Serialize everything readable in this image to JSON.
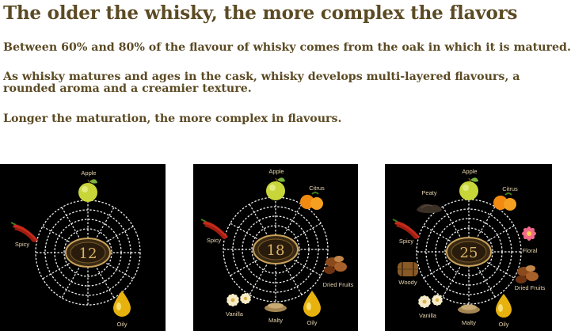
{
  "headline": "The older the whisky, the more complex the flavors",
  "paragraphs": [
    "Between 60% and 80% of the flavour of whisky comes from the oak in which it is  matured.",
    "As whisky matures and ages in the cask, whisky develops multi-layered flavours, a rounded aroma and a creamier texture.",
    "Longer the maturation, the more complex in flavours."
  ],
  "wheels": [
    {
      "age": "12",
      "flavors": [
        {
          "label": "Apple",
          "icon": "apple-icon"
        },
        {
          "label": "Spicy",
          "icon": "chili-icon"
        },
        {
          "label": "Oily",
          "icon": "oil-drop-icon"
        }
      ]
    },
    {
      "age": "18",
      "flavors": [
        {
          "label": "Apple",
          "icon": "apple-icon"
        },
        {
          "label": "Citrus",
          "icon": "orange-icon"
        },
        {
          "label": "Spicy",
          "icon": "chili-icon"
        },
        {
          "label": "Dried Fruits",
          "icon": "dried-fruits-icon"
        },
        {
          "label": "Vanilla",
          "icon": "vanilla-flower-icon"
        },
        {
          "label": "Malty",
          "icon": "malt-icon"
        },
        {
          "label": "Oily",
          "icon": "oil-drop-icon"
        }
      ]
    },
    {
      "age": "25",
      "flavors": [
        {
          "label": "Apple",
          "icon": "apple-icon"
        },
        {
          "label": "Peaty",
          "icon": "peat-icon"
        },
        {
          "label": "Citrus",
          "icon": "orange-icon"
        },
        {
          "label": "Spicy",
          "icon": "chili-icon"
        },
        {
          "label": "Floral",
          "icon": "flower-icon"
        },
        {
          "label": "Woody",
          "icon": "barrel-icon"
        },
        {
          "label": "Dried Fruits",
          "icon": "dried-fruits-icon"
        },
        {
          "label": "Vanilla",
          "icon": "vanilla-flower-icon"
        },
        {
          "label": "Malty",
          "icon": "malt-icon"
        },
        {
          "label": "Oily",
          "icon": "oil-drop-icon"
        }
      ]
    }
  ],
  "colors": {
    "text": "#5b4a23",
    "panel_bg": "#000000",
    "web_lines": "#f2f2f2",
    "badge": "#3a2a14",
    "age_text": "#d9b46a"
  }
}
